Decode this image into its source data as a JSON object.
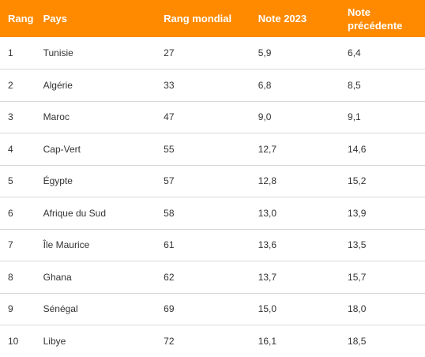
{
  "table": {
    "headers": [
      "Rang",
      "Pays",
      "Rang mondial",
      "Note 2023",
      "Note précédente"
    ],
    "rows": [
      {
        "rang": "1",
        "pays": "Tunisie",
        "rang_mondial": "27",
        "note_2023": "5,9",
        "note_precedente": "6,4"
      },
      {
        "rang": "2",
        "pays": "Algérie",
        "rang_mondial": "33",
        "note_2023": "6,8",
        "note_precedente": "8,5"
      },
      {
        "rang": "3",
        "pays": "Maroc",
        "rang_mondial": "47",
        "note_2023": "9,0",
        "note_precedente": "9,1"
      },
      {
        "rang": "4",
        "pays": "Cap-Vert",
        "rang_mondial": "55",
        "note_2023": "12,7",
        "note_precedente": "14,6"
      },
      {
        "rang": "5",
        "pays": "Égypte",
        "rang_mondial": "57",
        "note_2023": "12,8",
        "note_precedente": "15,2"
      },
      {
        "rang": "6",
        "pays": "Afrique du Sud",
        "rang_mondial": "58",
        "note_2023": "13,0",
        "note_precedente": "13,9"
      },
      {
        "rang": "7",
        "pays": "Île Maurice",
        "rang_mondial": "61",
        "note_2023": "13,6",
        "note_precedente": "13,5"
      },
      {
        "rang": "8",
        "pays": "Ghana",
        "rang_mondial": "62",
        "note_2023": "13,7",
        "note_precedente": "15,7"
      },
      {
        "rang": "9",
        "pays": "Sénégal",
        "rang_mondial": "69",
        "note_2023": "15,0",
        "note_precedente": "18,0"
      },
      {
        "rang": "10",
        "pays": "Libye",
        "rang_mondial": "72",
        "note_2023": "16,1",
        "note_precedente": "18,5"
      }
    ]
  },
  "colors": {
    "header_bg": "#ff8a00",
    "header_text": "#ffffff",
    "row_divider": "#d9d9d9"
  }
}
